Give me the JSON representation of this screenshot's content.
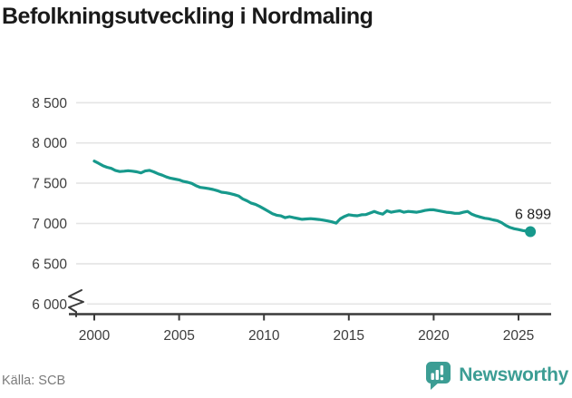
{
  "header": {
    "title": "Befolkningsutveckling i Nordmaling"
  },
  "chart_data": {
    "type": "line",
    "title": "Befolkningsutveckling i Nordmaling",
    "grid": true,
    "x_axis": {
      "ticks": [
        2000,
        2005,
        2010,
        2015,
        2020,
        2025
      ],
      "tick_labels": [
        "2000",
        "2005",
        "2010",
        "2015",
        "2020",
        "2025"
      ],
      "range": [
        2000,
        2026
      ]
    },
    "y_axis": {
      "ticks": [
        8500,
        8000,
        7500,
        7000,
        6500,
        6000
      ],
      "tick_labels": [
        "8 500",
        "8 000",
        "7 500",
        "7 000",
        "6 500",
        "6 000"
      ],
      "range_shown": [
        6000,
        8500
      ],
      "axis_break_at_bottom": true
    },
    "series": [
      {
        "name": "Befolkning",
        "color": "#17998c",
        "points": [
          [
            2000.0,
            7775
          ],
          [
            2000.25,
            7748
          ],
          [
            2000.5,
            7718
          ],
          [
            2000.75,
            7698
          ],
          [
            2001.0,
            7685
          ],
          [
            2001.25,
            7658
          ],
          [
            2001.5,
            7645
          ],
          [
            2001.75,
            7650
          ],
          [
            2002.0,
            7655
          ],
          [
            2002.25,
            7650
          ],
          [
            2002.5,
            7642
          ],
          [
            2002.75,
            7628
          ],
          [
            2003.0,
            7652
          ],
          [
            2003.25,
            7660
          ],
          [
            2003.5,
            7642
          ],
          [
            2003.75,
            7618
          ],
          [
            2004.0,
            7600
          ],
          [
            2004.25,
            7578
          ],
          [
            2004.5,
            7562
          ],
          [
            2004.75,
            7552
          ],
          [
            2005.0,
            7542
          ],
          [
            2005.25,
            7522
          ],
          [
            2005.5,
            7512
          ],
          [
            2005.75,
            7498
          ],
          [
            2006.0,
            7468
          ],
          [
            2006.25,
            7448
          ],
          [
            2006.5,
            7442
          ],
          [
            2006.75,
            7432
          ],
          [
            2007.0,
            7422
          ],
          [
            2007.25,
            7408
          ],
          [
            2007.5,
            7388
          ],
          [
            2007.75,
            7382
          ],
          [
            2008.0,
            7372
          ],
          [
            2008.25,
            7358
          ],
          [
            2008.5,
            7342
          ],
          [
            2008.75,
            7305
          ],
          [
            2009.0,
            7282
          ],
          [
            2009.25,
            7252
          ],
          [
            2009.5,
            7238
          ],
          [
            2009.75,
            7212
          ],
          [
            2010.0,
            7182
          ],
          [
            2010.25,
            7152
          ],
          [
            2010.5,
            7122
          ],
          [
            2010.75,
            7102
          ],
          [
            2011.0,
            7095
          ],
          [
            2011.25,
            7072
          ],
          [
            2011.5,
            7085
          ],
          [
            2011.75,
            7072
          ],
          [
            2012.0,
            7062
          ],
          [
            2012.25,
            7052
          ],
          [
            2012.5,
            7056
          ],
          [
            2012.75,
            7060
          ],
          [
            2013.0,
            7055
          ],
          [
            2013.25,
            7050
          ],
          [
            2013.5,
            7042
          ],
          [
            2013.75,
            7032
          ],
          [
            2014.0,
            7020
          ],
          [
            2014.25,
            7005
          ],
          [
            2014.5,
            7058
          ],
          [
            2014.75,
            7088
          ],
          [
            2015.0,
            7108
          ],
          [
            2015.25,
            7100
          ],
          [
            2015.5,
            7096
          ],
          [
            2015.75,
            7108
          ],
          [
            2016.0,
            7110
          ],
          [
            2016.25,
            7130
          ],
          [
            2016.5,
            7150
          ],
          [
            2016.75,
            7130
          ],
          [
            2017.0,
            7116
          ],
          [
            2017.25,
            7158
          ],
          [
            2017.5,
            7140
          ],
          [
            2017.75,
            7150
          ],
          [
            2018.0,
            7158
          ],
          [
            2018.25,
            7140
          ],
          [
            2018.5,
            7150
          ],
          [
            2018.75,
            7145
          ],
          [
            2019.0,
            7140
          ],
          [
            2019.25,
            7150
          ],
          [
            2019.5,
            7162
          ],
          [
            2019.75,
            7170
          ],
          [
            2020.0,
            7170
          ],
          [
            2020.25,
            7160
          ],
          [
            2020.5,
            7150
          ],
          [
            2020.75,
            7140
          ],
          [
            2021.0,
            7135
          ],
          [
            2021.25,
            7126
          ],
          [
            2021.5,
            7126
          ],
          [
            2021.75,
            7140
          ],
          [
            2022.0,
            7150
          ],
          [
            2022.25,
            7115
          ],
          [
            2022.5,
            7095
          ],
          [
            2022.75,
            7080
          ],
          [
            2023.0,
            7065
          ],
          [
            2023.25,
            7058
          ],
          [
            2023.5,
            7045
          ],
          [
            2023.75,
            7035
          ],
          [
            2024.0,
            7010
          ],
          [
            2024.25,
            6975
          ],
          [
            2024.5,
            6950
          ],
          [
            2024.75,
            6935
          ],
          [
            2025.0,
            6925
          ],
          [
            2025.25,
            6912
          ],
          [
            2025.7,
            6899
          ]
        ]
      }
    ],
    "end_point": {
      "x": 2025.7,
      "value": 6899
    },
    "end_label": "6 899"
  },
  "footer": {
    "source": "Källa: SCB",
    "brand": "Newsworthy"
  },
  "colors": {
    "line": "#17998c",
    "grid": "#e4e4e4",
    "axis": "#3a3a3a",
    "tick_text": "#3d3d3d",
    "title_text": "#1a1a1a",
    "end_label_text": "#1f1f1f",
    "source_text": "#7b7b7b",
    "brand_teal": "#3c9d94"
  }
}
